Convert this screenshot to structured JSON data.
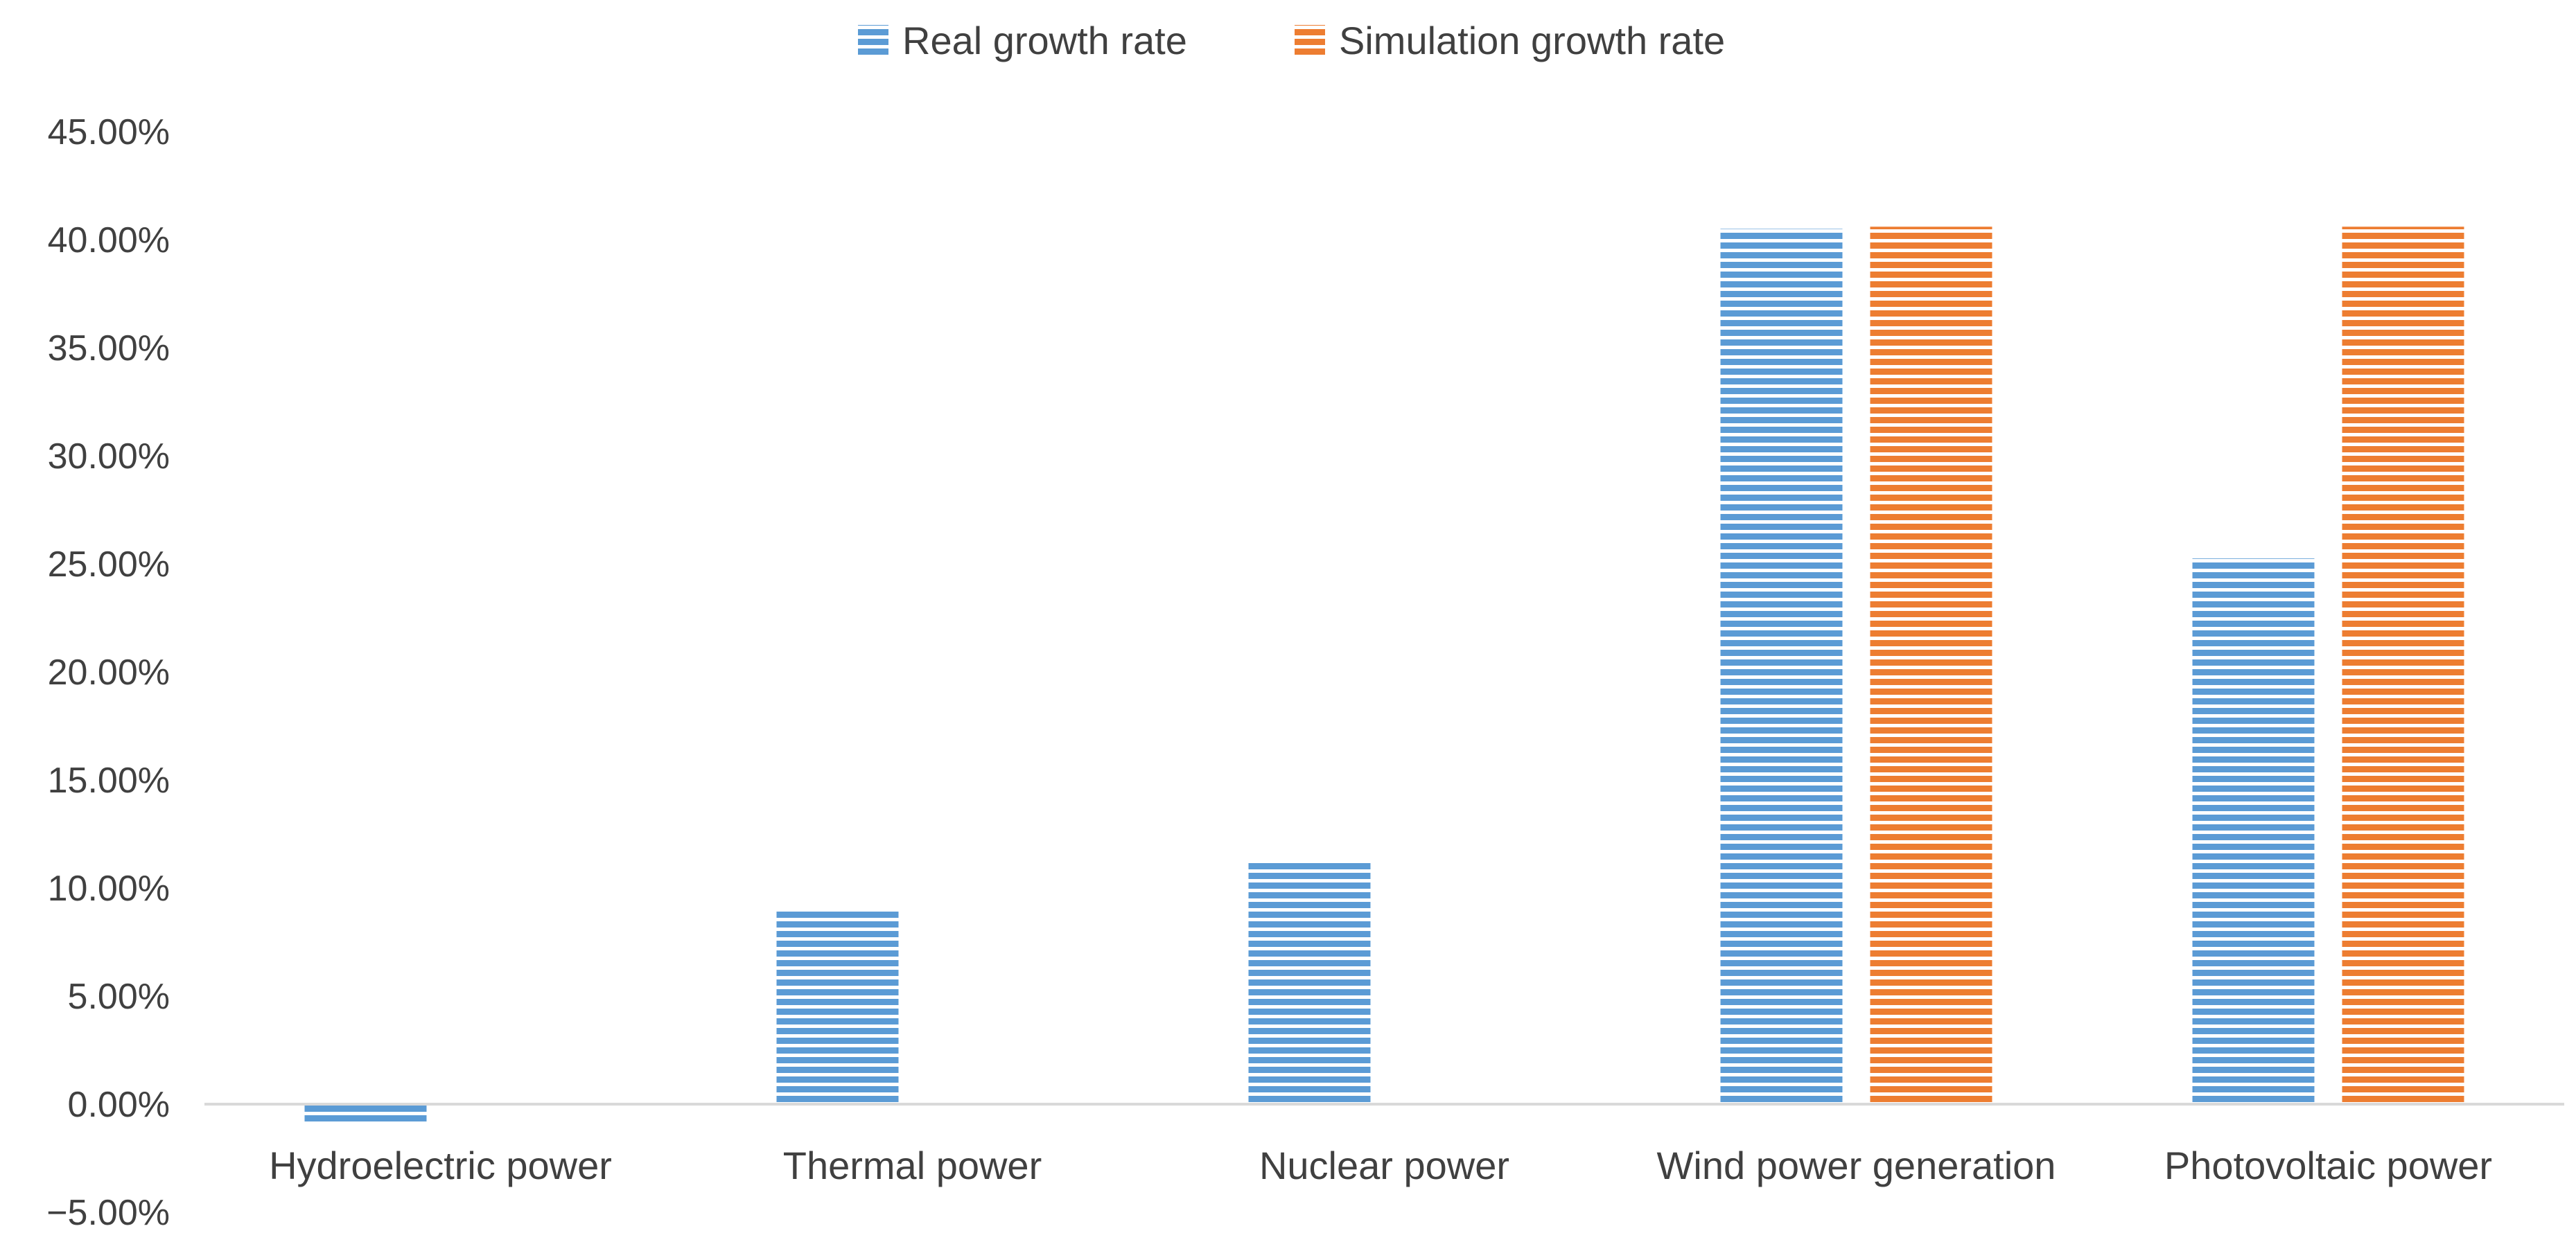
{
  "chart_data": {
    "type": "bar",
    "categories": [
      "Hydroelectric power",
      "Thermal power",
      "Nuclear power",
      "Wind power generation",
      "Photovoltaic power"
    ],
    "series": [
      {
        "name": "Real growth rate",
        "values": [
          -0.0095,
          0.09,
          0.1125,
          0.405,
          0.2525
        ],
        "color": "#5B9BD5"
      },
      {
        "name": "Simulation growth rate",
        "values": [
          null,
          null,
          null,
          0.406,
          0.406
        ],
        "color": "#ED7D31"
      }
    ],
    "y_ticks": [
      "45.00%",
      "40.00%",
      "35.00%",
      "30.00%",
      "25.00%",
      "20.00%",
      "15.00%",
      "10.00%",
      "5.00%",
      "0.00%",
      "−5.00%"
    ],
    "ylim": [
      -0.05,
      0.45
    ],
    "legend_position": "top-center",
    "bar_pattern": "horizontal-stripes",
    "grid": false
  }
}
